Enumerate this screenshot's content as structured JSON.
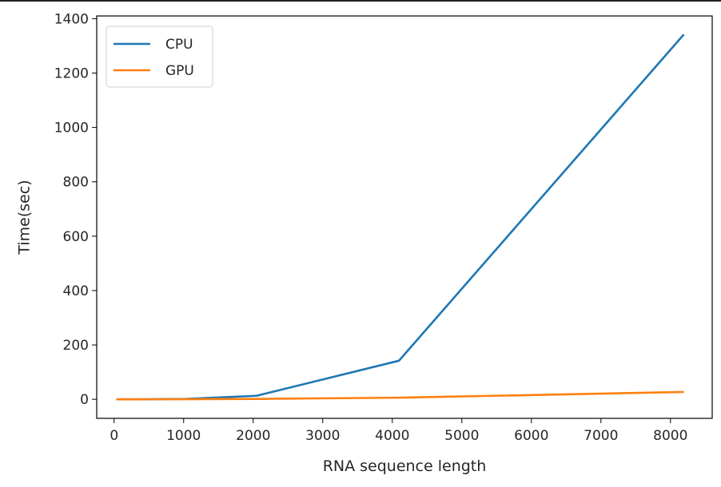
{
  "chart_data": {
    "type": "line",
    "title": "",
    "xlabel": "RNA sequence length",
    "ylabel": "Time(sec)",
    "xlim": [
      -250,
      8600
    ],
    "ylim": [
      -70,
      1410
    ],
    "xticks": [
      0,
      1000,
      2000,
      3000,
      4000,
      5000,
      6000,
      7000,
      8000
    ],
    "yticks": [
      0,
      200,
      400,
      600,
      800,
      1000,
      1200,
      1400
    ],
    "grid": false,
    "legend_position": "upper-left",
    "series": [
      {
        "name": "CPU",
        "color": "#1f77b4",
        "x": [
          32,
          64,
          128,
          256,
          512,
          1024,
          2048,
          4096,
          8192
        ],
        "y": [
          0,
          0,
          0,
          0,
          0.2,
          1.5,
          13,
          142,
          1342
        ]
      },
      {
        "name": "GPU",
        "color": "#ff7f0e",
        "x": [
          32,
          64,
          128,
          256,
          512,
          1024,
          2048,
          4096,
          8192
        ],
        "y": [
          0,
          0,
          0,
          0,
          0.1,
          0.4,
          1.5,
          6,
          27
        ]
      }
    ]
  }
}
